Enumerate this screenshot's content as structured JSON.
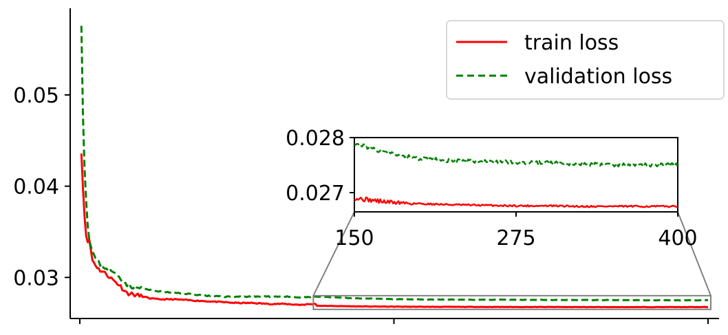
{
  "chart_data": [
    {
      "type": "line",
      "title": "",
      "xlabel": "",
      "ylabel": "",
      "xlim": [
        0,
        400
      ],
      "ylim": [
        0.0255,
        0.0595
      ],
      "yticks": [
        0.03,
        0.04,
        0.05
      ],
      "ytick_labels": [
        "0.03",
        "0.04",
        "0.05"
      ],
      "xticks": [
        0,
        200,
        400
      ],
      "xtick_labels": [
        "",
        "",
        ""
      ],
      "grid": false,
      "legend": "top-right",
      "x": [
        1,
        2,
        3,
        4,
        5,
        6,
        8,
        10,
        12,
        15,
        18,
        20,
        22,
        25,
        30,
        35,
        40,
        45,
        50,
        60,
        70,
        80,
        90,
        100,
        110,
        120,
        130,
        140,
        150
      ],
      "series": [
        {
          "name": "train loss",
          "color": "#ff0000",
          "style": "solid",
          "values": [
            0.0438,
            0.0398,
            0.0368,
            0.0348,
            0.0337,
            0.0342,
            0.0319,
            0.0314,
            0.0309,
            0.0306,
            0.0302,
            0.0299,
            0.0296,
            0.0292,
            0.0283,
            0.0281,
            0.0279,
            0.0277,
            0.0276,
            0.0276,
            0.0275,
            0.0274,
            0.0273,
            0.0272,
            0.0272,
            0.0271,
            0.0271,
            0.027,
            0.0271
          ]
        },
        {
          "name": "validation loss",
          "color": "#008000",
          "style": "dashed",
          "values": [
            0.0578,
            0.048,
            0.042,
            0.0385,
            0.0358,
            0.0344,
            0.0328,
            0.0321,
            0.0316,
            0.0312,
            0.0309,
            0.0307,
            0.0304,
            0.0301,
            0.0292,
            0.0289,
            0.0288,
            0.0286,
            0.0285,
            0.0283,
            0.0282,
            0.028,
            0.0279,
            0.0279,
            0.0279,
            0.0279,
            0.0279,
            0.0278,
            0.0279
          ]
        }
      ],
      "tail_noise": true
    },
    {
      "type": "line",
      "title": "",
      "xlabel": "",
      "ylabel": "",
      "xlim": [
        150,
        400
      ],
      "ylim": [
        0.02665,
        0.028
      ],
      "yticks": [
        0.027,
        0.028
      ],
      "ytick_labels": [
        "0.027",
        "0.028"
      ],
      "xticks": [
        150,
        275,
        400
      ],
      "xtick_labels": [
        "150",
        "275",
        "400"
      ],
      "grid": false,
      "series": [
        {
          "name": "train loss",
          "color": "#ff0000",
          "style": "solid",
          "x": [
            150,
            175,
            200,
            225,
            250,
            275,
            300,
            325,
            350,
            375,
            400
          ],
          "values": [
            0.0269,
            0.02683,
            0.0268,
            0.02678,
            0.02677,
            0.02676,
            0.02676,
            0.02675,
            0.02675,
            0.02675,
            0.02675
          ]
        },
        {
          "name": "validation loss",
          "color": "#008000",
          "style": "dashed",
          "x": [
            150,
            175,
            200,
            225,
            250,
            275,
            300,
            325,
            350,
            375,
            400
          ],
          "values": [
            0.0279,
            0.02772,
            0.02762,
            0.02758,
            0.02756,
            0.02755,
            0.02754,
            0.02752,
            0.02751,
            0.0275,
            0.0275
          ]
        }
      ]
    }
  ],
  "legend": {
    "items": [
      {
        "label": "train loss",
        "color": "#ff0000",
        "style": "solid"
      },
      {
        "label": "validation loss",
        "color": "#008000",
        "style": "dashed"
      }
    ]
  },
  "zoom_box_color": "#808080"
}
